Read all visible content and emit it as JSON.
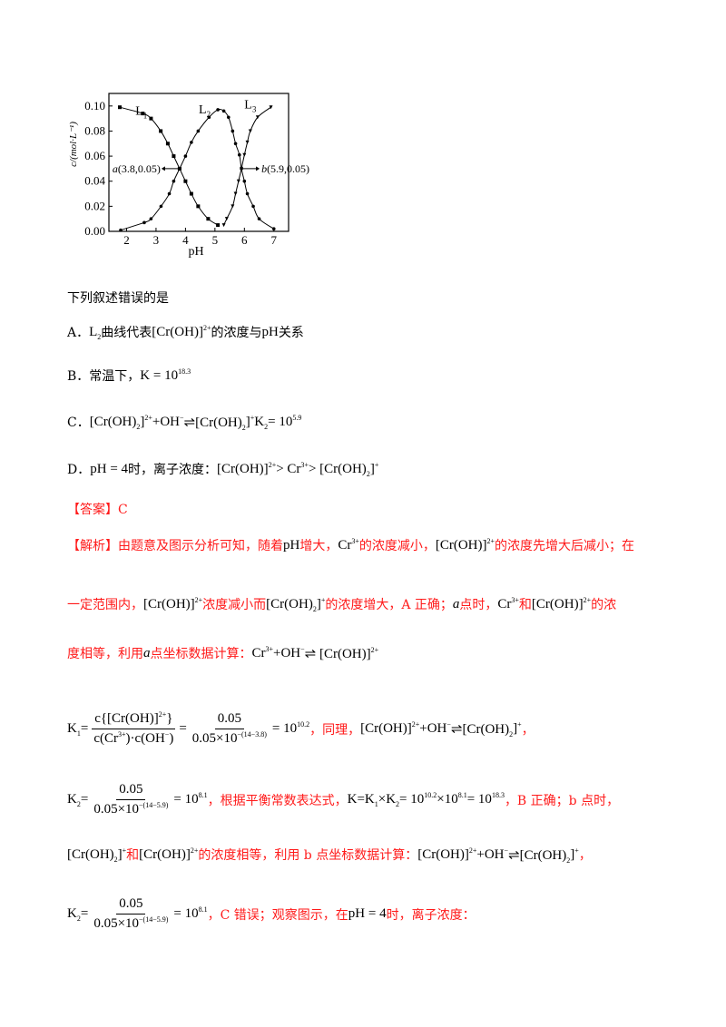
{
  "colors": {
    "red": "#ff1a1a",
    "black": "#000000"
  },
  "chart_data": {
    "type": "line",
    "xlabel": "pH",
    "ylabel": "c/(mol·L⁻¹)",
    "xlim": [
      1.4,
      7.5
    ],
    "ylim": [
      0,
      0.11
    ],
    "xticks": [
      2,
      3,
      4,
      5,
      6,
      7
    ],
    "yticks": [
      "0.00",
      "0.02",
      "0.04",
      "0.06",
      "0.08",
      "0.10"
    ],
    "grid": false,
    "series": [
      {
        "name": "L1",
        "marker": "square",
        "x": [
          1.77,
          2.55,
          2.83,
          3.16,
          3.4,
          3.6,
          3.8,
          4.0,
          4.2,
          4.43,
          4.77,
          5.1
        ],
        "y": [
          0.099,
          0.094,
          0.09,
          0.08,
          0.07,
          0.06,
          0.05,
          0.04,
          0.03,
          0.02,
          0.01,
          0.005
        ]
      },
      {
        "name": "L2",
        "marker": "circle",
        "x": [
          1.8,
          2.6,
          2.83,
          3.17,
          3.45,
          3.6,
          3.8,
          4.0,
          4.2,
          4.43,
          4.8,
          5.1,
          5.3,
          5.46,
          5.6,
          5.7,
          5.83,
          5.9,
          6.0,
          6.1,
          6.3,
          6.5,
          7.0
        ],
        "y": [
          0.001,
          0.007,
          0.01,
          0.02,
          0.03,
          0.04,
          0.05,
          0.06,
          0.071,
          0.08,
          0.091,
          0.097,
          0.096,
          0.091,
          0.08,
          0.07,
          0.061,
          0.05,
          0.04,
          0.03,
          0.02,
          0.01,
          0.002
        ]
      },
      {
        "name": "L3",
        "marker": "triangle",
        "x": [
          5.3,
          5.4,
          5.6,
          5.7,
          5.8,
          5.9,
          6.0,
          6.1,
          6.2,
          6.45,
          6.9
        ],
        "y": [
          0.005,
          0.01,
          0.02,
          0.03,
          0.04,
          0.05,
          0.061,
          0.071,
          0.08,
          0.091,
          0.099
        ]
      }
    ],
    "curve_labels": [
      {
        "main": "L",
        "sub": "1",
        "x": 2.3,
        "y": 0.093
      },
      {
        "main": "L",
        "sub": "2",
        "x": 4.45,
        "y": 0.094
      },
      {
        "main": "L",
        "sub": "3",
        "x": 6.0,
        "y": 0.098
      }
    ],
    "annotations": [
      {
        "label": "a",
        "text": "(3.8,0.05)",
        "x": 3.8,
        "y": 0.05,
        "direction": "left"
      },
      {
        "label": "b",
        "text": "(5.9,0.05)",
        "x": 5.9,
        "y": 0.05,
        "direction": "right"
      }
    ]
  },
  "lines": [
    {
      "top": 318,
      "segs": [
        {
          "t": "下列叙述错误的是"
        }
      ]
    },
    {
      "top": 356,
      "segs": [
        {
          "t": "A．"
        },
        {
          "t": "L",
          "m": 1,
          "sub": "2"
        },
        {
          "t": "曲线代表"
        },
        {
          "t": "[Cr(OH)]",
          "m": 1,
          "sup": "2+"
        },
        {
          "t": "的浓度与"
        },
        {
          "t": "pH",
          "m": 1
        },
        {
          "t": "关系"
        }
      ]
    },
    {
      "top": 404,
      "segs": [
        {
          "t": "B．常温下，"
        },
        {
          "t": "K = 10",
          "m": 1,
          "sup": "18.3"
        }
      ]
    },
    {
      "top": 455,
      "segs": [
        {
          "t": "C．"
        },
        {
          "t": "[Cr(OH)",
          "m": 1,
          "sub": "2"
        },
        {
          "t": "]",
          "m": 1,
          "sup": "2+"
        },
        {
          "t": " +OH",
          "m": 1,
          "sup": "−"
        },
        {
          "t": " ⇌[Cr(OH)",
          "m": 1,
          "sub": "2"
        },
        {
          "t": "]",
          "m": 1,
          "sup": "+"
        },
        {
          "t": "  K",
          "m": 1,
          "sub": "2"
        },
        {
          "t": " = 10",
          "m": 1,
          "sup": "5.9"
        }
      ]
    },
    {
      "top": 507,
      "segs": [
        {
          "t": "D．"
        },
        {
          "t": "pH = 4",
          "m": 1
        },
        {
          "t": "时，离子浓度："
        },
        {
          "t": "[Cr(OH)]",
          "m": 1,
          "sup": "2+"
        },
        {
          "t": " > Cr",
          "m": 1,
          "sup": "3+"
        },
        {
          "t": " > [Cr(OH)",
          "m": 1,
          "sub": "2"
        },
        {
          "t": "]",
          "m": 1,
          "sup": "+"
        }
      ]
    },
    {
      "top": 551,
      "segs": [
        {
          "t": "【答案】C",
          "c": "r"
        }
      ]
    },
    {
      "top": 591,
      "segs": [
        {
          "t": "【解析】由题意及图示分析可知，随着",
          "c": "r"
        },
        {
          "t": "pH",
          "m": 1
        },
        {
          "t": "增大，",
          "c": "r"
        },
        {
          "t": "Cr",
          "m": 1,
          "sup": "3+"
        },
        {
          "t": "的浓度减小，",
          "c": "r"
        },
        {
          "t": "[Cr(OH)]",
          "m": 1,
          "sup": "2+"
        },
        {
          "t": "的浓度先增大后减小；在",
          "c": "r"
        }
      ]
    },
    {
      "top": 656,
      "segs": [
        {
          "t": "一定范围内，",
          "c": "r"
        },
        {
          "t": "[Cr(OH)]",
          "m": 1,
          "sup": "2+"
        },
        {
          "t": "浓度减小而",
          "c": "r"
        },
        {
          "t": "[Cr(OH)",
          "m": 1,
          "sub": "2"
        },
        {
          "t": "]",
          "m": 1,
          "sup": "+"
        },
        {
          "t": "的浓度增大，A 正确；",
          "c": "r"
        },
        {
          "t": "a",
          "m": 1,
          "i": 1
        },
        {
          "t": "点时，",
          "c": "r"
        },
        {
          "t": "Cr",
          "m": 1,
          "sup": "3+"
        },
        {
          "t": " 和",
          "c": "r"
        },
        {
          "t": "[Cr(OH)]",
          "m": 1,
          "sup": "2+"
        },
        {
          "t": "的浓",
          "c": "r"
        }
      ]
    },
    {
      "top": 710,
      "segs": [
        {
          "t": "度相等，利用",
          "c": "r"
        },
        {
          "t": "a",
          "m": 1,
          "i": 1
        },
        {
          "t": "点坐标数据计算：",
          "c": "r"
        },
        {
          "t": "Cr",
          "m": 1,
          "sup": "3+"
        },
        {
          "t": " +OH",
          "m": 1,
          "sup": "−"
        },
        {
          "t": " ⇌ [Cr(OH)]",
          "m": 1,
          "sup": "2+"
        }
      ]
    },
    {
      "top": 784,
      "segs": [
        {
          "t": "K",
          "m": 1,
          "sub": "1"
        },
        {
          "t": " =",
          "m": 1
        },
        {
          "frac": {
            "num": [
              {
                "t": "c{[Cr(OH)]",
                "m": 1,
                "sup": "2+"
              },
              {
                "t": "}",
                "m": 1
              }
            ],
            "den": [
              {
                "t": "c(Cr",
                "m": 1,
                "sup": "3+"
              },
              {
                "t": ")·c(OH",
                "m": 1,
                "sup": "−"
              },
              {
                "t": ")",
                "m": 1
              }
            ]
          }
        },
        {
          "t": "=",
          "m": 1
        },
        {
          "frac": {
            "num": [
              {
                "t": "0.05",
                "m": 1
              }
            ],
            "den": [
              {
                "t": "0.05×10",
                "m": 1,
                "sup": "−(14−3.8)"
              }
            ]
          }
        },
        {
          "t": "= 10",
          "m": 1,
          "sup": "10.2"
        },
        {
          "t": "，同理，",
          "c": "r"
        },
        {
          "t": " [Cr(OH)]",
          "m": 1,
          "sup": "2+"
        },
        {
          "t": " +OH",
          "m": 1,
          "sup": "−"
        },
        {
          "t": " ⇌[Cr(OH)",
          "m": 1,
          "sub": "2"
        },
        {
          "t": "]",
          "m": 1,
          "sup": "+"
        },
        {
          "t": "，",
          "c": "r"
        }
      ]
    },
    {
      "top": 862,
      "segs": [
        {
          "t": "K",
          "m": 1,
          "sub": "2"
        },
        {
          "t": " =",
          "m": 1
        },
        {
          "frac": {
            "num": [
              {
                "t": "0.05",
                "m": 1
              }
            ],
            "den": [
              {
                "t": "0.05×10",
                "m": 1,
                "sup": "−(14−5.9)"
              }
            ]
          }
        },
        {
          "t": "= 10",
          "m": 1,
          "sup": "8.1"
        },
        {
          "t": "，根据平衡常数表达式，",
          "c": "r"
        },
        {
          "t": "K=K",
          "m": 1,
          "sub": "1"
        },
        {
          "t": "×K",
          "m": 1,
          "sub": "2"
        },
        {
          "t": " = 10",
          "m": 1,
          "sup": "10.2"
        },
        {
          "t": "×10",
          "m": 1,
          "sup": "8.1"
        },
        {
          "t": " = 10",
          "m": 1,
          "sup": "18.3"
        },
        {
          "t": "，B 正确；b 点时，",
          "c": "r"
        }
      ]
    },
    {
      "top": 932,
      "segs": [
        {
          "t": "[Cr(OH)",
          "m": 1,
          "sub": "2"
        },
        {
          "t": "]",
          "m": 1,
          "sup": "+"
        },
        {
          "t": "和",
          "c": "r"
        },
        {
          "t": "[Cr(OH)]",
          "m": 1,
          "sup": "2+"
        },
        {
          "t": "的浓度相等，利用 b 点坐标数据计算：",
          "c": "r"
        },
        {
          "t": "[Cr(OH)]",
          "m": 1,
          "sup": "2+"
        },
        {
          "t": " +OH",
          "m": 1,
          "sup": "−"
        },
        {
          "t": " ⇌[Cr(OH)",
          "m": 1,
          "sub": "2"
        },
        {
          "t": "]",
          "m": 1,
          "sup": "+"
        },
        {
          "t": "，",
          "c": "r"
        }
      ]
    },
    {
      "top": 988,
      "segs": [
        {
          "t": "K",
          "m": 1,
          "sub": "2"
        },
        {
          "t": " =",
          "m": 1
        },
        {
          "frac": {
            "num": [
              {
                "t": "0.05",
                "m": 1
              }
            ],
            "den": [
              {
                "t": "0.05×10",
                "m": 1,
                "sup": "−(14−5.9)"
              }
            ]
          }
        },
        {
          "t": "= 10",
          "m": 1,
          "sup": "8.1"
        },
        {
          "t": "，C 错误；观察图示，在",
          "c": "r"
        },
        {
          "t": "pH = 4",
          "m": 1
        },
        {
          "t": "时，离子浓度：",
          "c": "r"
        }
      ]
    }
  ]
}
